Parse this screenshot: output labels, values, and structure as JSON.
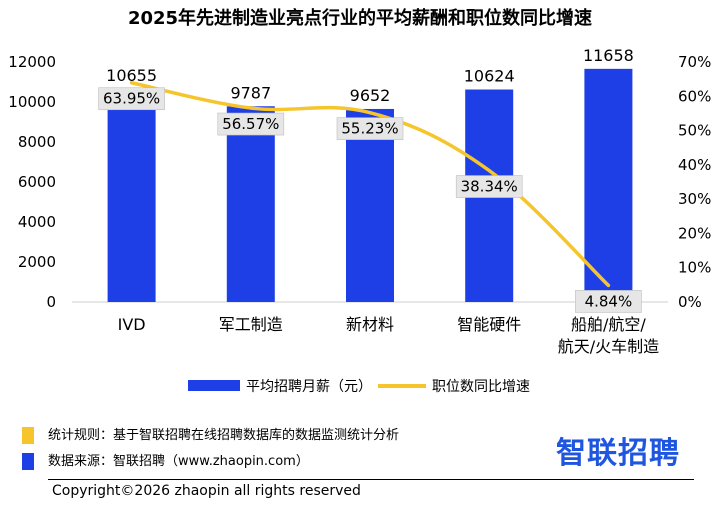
{
  "colors": {
    "bar": "#1f3fe6",
    "line": "#f5c52b",
    "label_bg": "#e6e6e6"
  },
  "chart_data": {
    "type": "bar",
    "title": "2025年先进制造业亮点行业的平均薪酬和职位数同比增速",
    "categories": [
      [
        "IVD"
      ],
      [
        "军工制造"
      ],
      [
        "新材料"
      ],
      [
        "智能硬件"
      ],
      [
        "船舶/航空/",
        "航天/火车制造"
      ]
    ],
    "series": [
      {
        "name": "平均招聘月薪（元）",
        "type": "bar",
        "axis": "left",
        "values": [
          10655,
          9787,
          9652,
          10624,
          11658
        ],
        "labels": [
          "10655",
          "9787",
          "9652",
          "10624",
          "11658"
        ]
      },
      {
        "name": "职位数同比增速",
        "type": "line",
        "axis": "right",
        "values": [
          63.95,
          56.57,
          55.23,
          38.34,
          4.84
        ],
        "labels": [
          "63.95%",
          "56.57%",
          "55.23%",
          "38.34%",
          "4.84%"
        ]
      }
    ],
    "y_left": {
      "min": 0,
      "max": 12000,
      "ticks": [
        "0",
        "2000",
        "4000",
        "6000",
        "8000",
        "10000",
        "12000"
      ]
    },
    "y_right": {
      "min": 0,
      "max": 70,
      "ticks": [
        "0%",
        "10%",
        "20%",
        "30%",
        "40%",
        "50%",
        "60%",
        "70%"
      ]
    },
    "grid": false,
    "legend": "bottom"
  },
  "footer": {
    "rule_text": "统计规则：基于智联招聘在线招聘数据库的数据监测统计分析",
    "source_text": "数据来源：智联招聘（www.zhaopin.com）",
    "logo": "智联招聘",
    "copyright": "Copyright©2026 zhaopin all rights reserved",
    "rule_color": "#f5c52b",
    "source_color": "#1f3fe6"
  }
}
